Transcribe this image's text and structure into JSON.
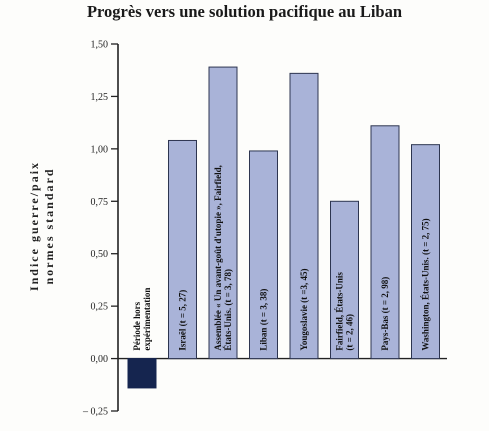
{
  "title": "Progrès vers une solution pacifique au Liban",
  "colors": {
    "bar_fill": "#a9b3d8",
    "bar_stroke": "#2d3550",
    "neg_bar_fill": "#15254f",
    "axis": "#222222"
  },
  "chart_data": {
    "type": "bar",
    "title": "Progrès vers une solution pacifique au Liban",
    "ylabel_lines": [
      "Indice guerre/paix",
      "normes standard"
    ],
    "ylim": [
      -0.25,
      1.5
    ],
    "yticks": [
      "1,50",
      "1,25",
      "1,00",
      "0,75",
      "0,50",
      "0,25",
      "0,00",
      "– 0,25"
    ],
    "ytick_values": [
      1.5,
      1.25,
      1.0,
      0.75,
      0.5,
      0.25,
      0.0,
      -0.25
    ],
    "grid": false,
    "categories": [
      [
        "Période hors",
        "expérimentation"
      ],
      [
        "Israël  (t = 5, 27)"
      ],
      [
        "Assemblée « Un avant-goût d'utopie », Fairfield,",
        "États-Unis.  (t = 3, 78)"
      ],
      [
        "Liban  (t = 3, 38)"
      ],
      [
        "Yougoslavie  (t =3, 45)"
      ],
      [
        "Fairfield, États-Unis",
        "(t = 2, 46)"
      ],
      [
        "Pays-Bas  (t = 2, 98)"
      ],
      [
        "Washington, États-Unis.  (t = 2, 75)"
      ]
    ],
    "values": [
      -0.14,
      1.04,
      1.39,
      0.99,
      1.36,
      0.75,
      1.11,
      1.02
    ]
  }
}
